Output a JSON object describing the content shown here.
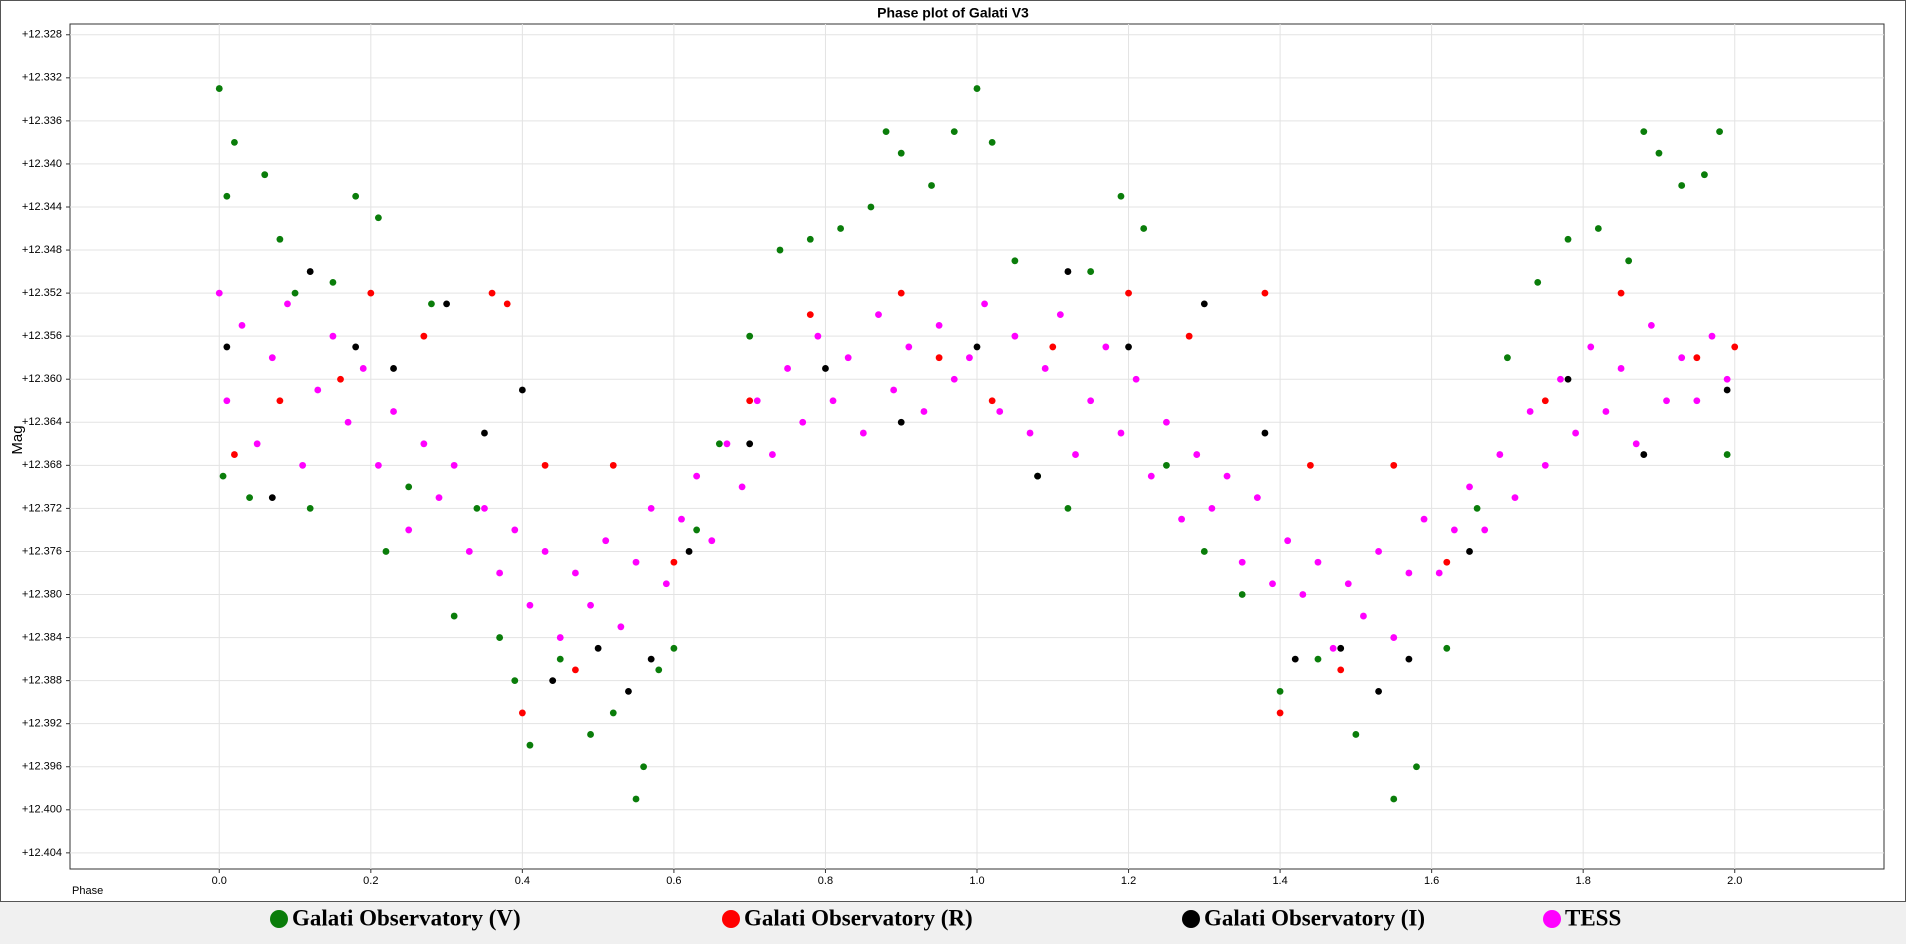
{
  "chart_data": {
    "type": "scatter",
    "title": "Phase plot of Galati V3",
    "x_label": "Phase",
    "y_label": "Mag",
    "invert_y": true,
    "grid": true,
    "legend": "bottom",
    "xlim": [
      -0.197,
      2.197
    ],
    "ylim": [
      12.327,
      12.4055
    ],
    "xticks": [
      {
        "value": 0,
        "label": "0.0"
      },
      0.2,
      0.4,
      0.6,
      0.8,
      {
        "value": 1,
        "label": "1.0"
      },
      1.2,
      1.4,
      1.6,
      1.8,
      {
        "value": 2,
        "label": "2.0"
      }
    ],
    "yticks": [
      {
        "value": 12.328,
        "label": "+12.328"
      },
      {
        "value": 12.332,
        "label": "+12.332"
      },
      {
        "value": 12.336,
        "label": "+12.336"
      },
      {
        "value": 12.34,
        "label": "+12.340"
      },
      {
        "value": 12.344,
        "label": "+12.344"
      },
      {
        "value": 12.348,
        "label": "+12.348"
      },
      {
        "value": 12.352,
        "label": "+12.352"
      },
      {
        "value": 12.356,
        "label": "+12.356"
      },
      {
        "value": 12.36,
        "label": "+12.360"
      },
      {
        "value": 12.364,
        "label": "+12.364"
      },
      {
        "value": 12.368,
        "label": "+12.368"
      },
      {
        "value": 12.372,
        "label": "+12.372"
      },
      {
        "value": 12.376,
        "label": "+12.376"
      },
      {
        "value": 12.38,
        "label": "+12.380"
      },
      {
        "value": 12.384,
        "label": "+12.384"
      },
      {
        "value": 12.388,
        "label": "+12.388"
      },
      {
        "value": 12.392,
        "label": "+12.392"
      },
      {
        "value": 12.396,
        "label": "+12.396"
      },
      {
        "value": 12.4,
        "label": "+12.400"
      },
      {
        "value": 12.404,
        "label": "+12.404"
      }
    ],
    "series": [
      {
        "name": "TESS",
        "color": "#ff00ff",
        "x": [
          0.0,
          0.01,
          0.03,
          0.05,
          0.07,
          0.09,
          0.11,
          0.13,
          0.15,
          0.17,
          0.19,
          0.21,
          0.23,
          0.25,
          0.27,
          0.29,
          0.31,
          0.33,
          0.35,
          0.37,
          0.39,
          0.41,
          0.43,
          0.45,
          0.47,
          0.49,
          0.51,
          0.53,
          0.55,
          0.57,
          0.59,
          0.61,
          0.63,
          0.65,
          0.67,
          0.69,
          0.71,
          0.73,
          0.75,
          0.77,
          0.79,
          0.81,
          0.83,
          0.85,
          0.87,
          0.89,
          0.91,
          0.93,
          0.95,
          0.97,
          0.99,
          1.01,
          1.03,
          1.05,
          1.07,
          1.09,
          1.11,
          1.13,
          1.15,
          1.17,
          1.19,
          1.21,
          1.23,
          1.25,
          1.27,
          1.29,
          1.31,
          1.33,
          1.35,
          1.37,
          1.39,
          1.41,
          1.43,
          1.45,
          1.47,
          1.49,
          1.51,
          1.53,
          1.55,
          1.57,
          1.59,
          1.61,
          1.63,
          1.65,
          1.67,
          1.69,
          1.71,
          1.73,
          1.75,
          1.77,
          1.79,
          1.81,
          1.83,
          1.85,
          1.87,
          1.89,
          1.91,
          1.93,
          1.95,
          1.97,
          1.99
        ],
        "values": [
          12.352,
          12.362,
          12.355,
          12.366,
          12.358,
          12.353,
          12.368,
          12.361,
          12.356,
          12.364,
          12.359,
          12.368,
          12.363,
          12.374,
          12.366,
          12.371,
          12.368,
          12.376,
          12.372,
          12.378,
          12.374,
          12.381,
          12.376,
          12.384,
          12.378,
          12.381,
          12.375,
          12.383,
          12.377,
          12.372,
          12.379,
          12.373,
          12.369,
          12.375,
          12.366,
          12.37,
          12.362,
          12.367,
          12.359,
          12.364,
          12.356,
          12.362,
          12.358,
          12.365,
          12.354,
          12.361,
          12.357,
          12.363,
          12.355,
          12.36,
          12.358,
          12.353,
          12.363,
          12.356,
          12.365,
          12.359,
          12.354,
          12.367,
          12.362,
          12.357,
          12.365,
          12.36,
          12.369,
          12.364,
          12.373,
          12.367,
          12.372,
          12.369,
          12.377,
          12.371,
          12.379,
          12.375,
          12.38,
          12.377,
          12.385,
          12.379,
          12.382,
          12.376,
          12.384,
          12.378,
          12.373,
          12.378,
          12.374,
          12.37,
          12.374,
          12.367,
          12.371,
          12.363,
          12.368,
          12.36,
          12.365,
          12.357,
          12.363,
          12.359,
          12.366,
          12.355,
          12.362,
          12.358,
          12.362,
          12.356,
          12.36
        ]
      },
      {
        "name": "Galati Observatory (V)",
        "color": "#0a7d0a",
        "x": [
          0.0,
          0.005,
          0.01,
          0.02,
          0.04,
          0.06,
          0.08,
          0.1,
          0.12,
          0.15,
          0.18,
          0.21,
          0.22,
          0.25,
          0.28,
          0.31,
          0.34,
          0.37,
          0.39,
          0.41,
          0.45,
          0.49,
          0.52,
          0.55,
          0.56,
          0.58,
          0.6,
          0.63,
          0.66,
          0.7,
          0.74,
          0.78,
          0.82,
          0.86,
          0.88,
          0.9,
          0.94,
          0.97,
          1.0,
          1.02,
          1.05,
          1.08,
          1.12,
          1.15,
          1.19,
          1.22,
          1.25,
          1.3,
          1.35,
          1.4,
          1.45,
          1.5,
          1.55,
          1.58,
          1.62,
          1.66,
          1.7,
          1.74,
          1.78,
          1.82,
          1.86,
          1.88,
          1.9,
          1.93,
          1.96,
          1.98,
          1.99
        ],
        "values": [
          12.333,
          12.369,
          12.343,
          12.338,
          12.371,
          12.341,
          12.347,
          12.352,
          12.372,
          12.351,
          12.343,
          12.345,
          12.376,
          12.37,
          12.353,
          12.382,
          12.372,
          12.384,
          12.388,
          12.394,
          12.386,
          12.393,
          12.391,
          12.399,
          12.396,
          12.387,
          12.385,
          12.374,
          12.366,
          12.356,
          12.348,
          12.347,
          12.346,
          12.344,
          12.337,
          12.339,
          12.342,
          12.337,
          12.333,
          12.338,
          12.349,
          12.369,
          12.372,
          12.35,
          12.343,
          12.346,
          12.368,
          12.376,
          12.38,
          12.389,
          12.386,
          12.393,
          12.399,
          12.396,
          12.385,
          12.372,
          12.358,
          12.351,
          12.347,
          12.346,
          12.349,
          12.337,
          12.339,
          12.342,
          12.341,
          12.337,
          12.367
        ]
      },
      {
        "name": "Galati Observatory (R)",
        "color": "#ff0000",
        "x": [
          0.02,
          0.08,
          0.16,
          0.2,
          0.27,
          0.36,
          0.38,
          0.4,
          0.43,
          0.47,
          0.52,
          0.6,
          0.7,
          0.78,
          0.9,
          0.95,
          1.02,
          1.1,
          1.2,
          1.28,
          1.38,
          1.4,
          1.44,
          1.48,
          1.55,
          1.62,
          1.75,
          1.85,
          1.95,
          2.0
        ],
        "values": [
          12.367,
          12.362,
          12.36,
          12.352,
          12.356,
          12.352,
          12.353,
          12.391,
          12.368,
          12.387,
          12.368,
          12.377,
          12.362,
          12.354,
          12.352,
          12.358,
          12.362,
          12.357,
          12.352,
          12.356,
          12.352,
          12.391,
          12.368,
          12.387,
          12.368,
          12.377,
          12.362,
          12.352,
          12.358,
          12.357
        ]
      },
      {
        "name": "Galati Observatory (I)",
        "color": "#000000",
        "x": [
          0.01,
          0.07,
          0.12,
          0.18,
          0.23,
          0.3,
          0.35,
          0.4,
          0.44,
          0.5,
          0.54,
          0.57,
          0.62,
          0.7,
          0.8,
          0.9,
          1.0,
          1.08,
          1.12,
          1.2,
          1.3,
          1.38,
          1.42,
          1.48,
          1.53,
          1.57,
          1.65,
          1.78,
          1.88,
          1.99
        ],
        "values": [
          12.357,
          12.371,
          12.35,
          12.357,
          12.359,
          12.353,
          12.365,
          12.361,
          12.388,
          12.385,
          12.389,
          12.386,
          12.376,
          12.366,
          12.359,
          12.364,
          12.357,
          12.369,
          12.35,
          12.357,
          12.353,
          12.365,
          12.386,
          12.385,
          12.389,
          12.386,
          12.376,
          12.36,
          12.367,
          12.361
        ]
      }
    ],
    "legend_order": [
      "Galati Observatory (V)",
      "Galati Observatory (R)",
      "Galati Observatory (I)",
      "TESS"
    ]
  }
}
